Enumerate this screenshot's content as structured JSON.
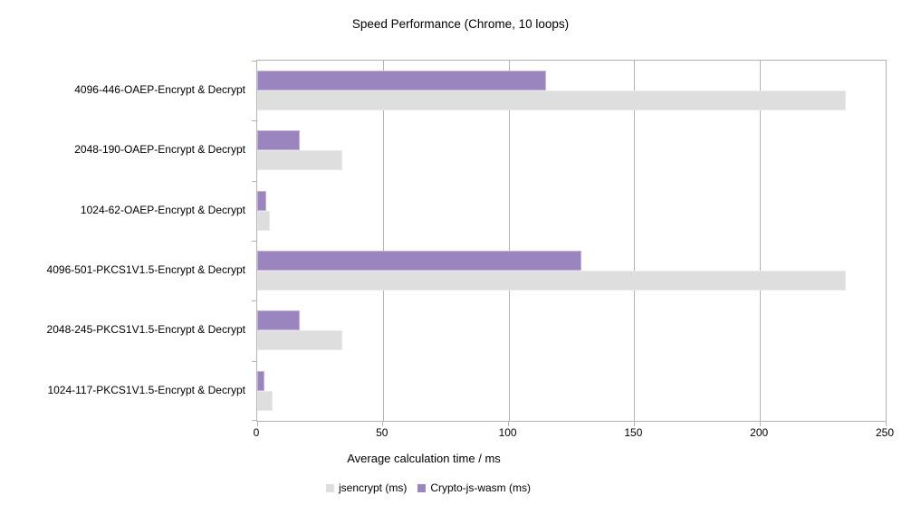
{
  "chart_data": {
    "type": "bar",
    "orientation": "horizontal",
    "title": "Speed Performance (Chrome, 10 loops)",
    "xlabel": "Average calculation time / ms",
    "ylabel": "",
    "categories": [
      "4096-446-OAEP-Encrypt & Decrypt",
      "2048-190-OAEP-Encrypt & Decrypt",
      "1024-62-OAEP-Encrypt & Decrypt",
      "4096-501-PKCS1V1.5-Encrypt & Decrypt",
      "2048-245-PKCS1V1.5-Encrypt & Decrypt",
      "1024-117-PKCS1V1.5-Encrypt & Decrypt"
    ],
    "series": [
      {
        "name": "jsencrypt (ms)",
        "color": "#dedede",
        "border_color": "#e9e9e9",
        "values": [
          234,
          34,
          5,
          234,
          34,
          6
        ]
      },
      {
        "name": "Crypto-js-wasm (ms)",
        "color": "#9a85bf",
        "border_color": "#c2b3da",
        "values": [
          115,
          17,
          3.5,
          129,
          17,
          3
        ]
      }
    ],
    "xlim": [
      0,
      250
    ],
    "xticks": [
      0,
      50,
      100,
      150,
      200,
      250
    ],
    "grid": "vertical-only",
    "legend_position": "bottom",
    "axis_color": "#b3b3b3",
    "text_color": "#000000",
    "background": "#ffffff"
  }
}
